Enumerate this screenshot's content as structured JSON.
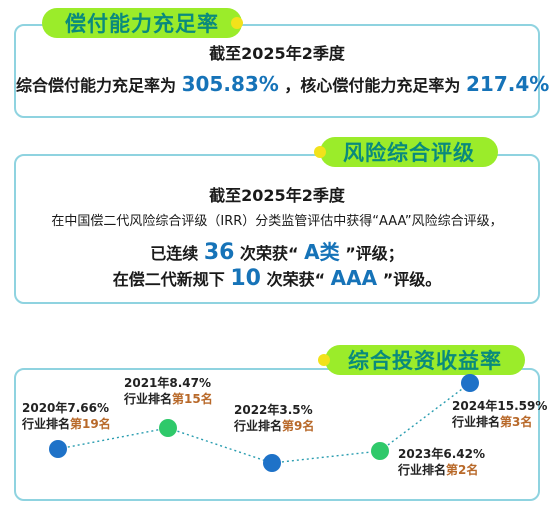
{
  "section1": {
    "title": "偿付能力充足率",
    "period": "截至2025年2季度",
    "comp_prefix": "综合偿付能力充足率为",
    "comp_value": "305.83%",
    "core_prefix": "，核心偿付能力充足率为",
    "core_value": "217.4%"
  },
  "section2": {
    "title": "风险综合评级",
    "period": "截至2025年2季度",
    "desc": "在中国偿二代风险综合评级（IRR）分类监管评估中获得“AAA”风险综合评级，",
    "line3_a": "已连续",
    "line3_num": "36",
    "line3_b": "次荣获“",
    "line3_grade": "A类",
    "line3_c": "”评级；",
    "line4_a": "在偿二代新规下",
    "line4_num": "10",
    "line4_b": "次荣获“",
    "line4_grade": "AAA",
    "line4_c": "”评级。"
  },
  "section3": {
    "title": "综合投资收益率",
    "rank_prefix": "行业排名",
    "points": [
      {
        "year": "2020年",
        "rate": "7.66%",
        "rank": "第19名",
        "value": 7.66,
        "color": "#1e72c8"
      },
      {
        "year": "2021年",
        "rate": "8.47%",
        "rank": "第15名",
        "value": 8.47,
        "color": "#2fc96a"
      },
      {
        "year": "2022年",
        "rate": "3.5%",
        "rank": "第9名",
        "value": 3.5,
        "color": "#1e72c8"
      },
      {
        "year": "2023年",
        "rate": "6.42%",
        "rank": "第2名",
        "value": 6.42,
        "color": "#2fc96a"
      },
      {
        "year": "2024年",
        "rate": "15.59%",
        "rank": "第3名",
        "value": 15.59,
        "color": "#1e72c8"
      }
    ]
  },
  "colors": {
    "accent_green": "#9bec2a",
    "title_teal": "#0a8a7c",
    "number_blue": "#1673b8",
    "rank_orange": "#b8692a",
    "border": "#8fd3e0"
  }
}
